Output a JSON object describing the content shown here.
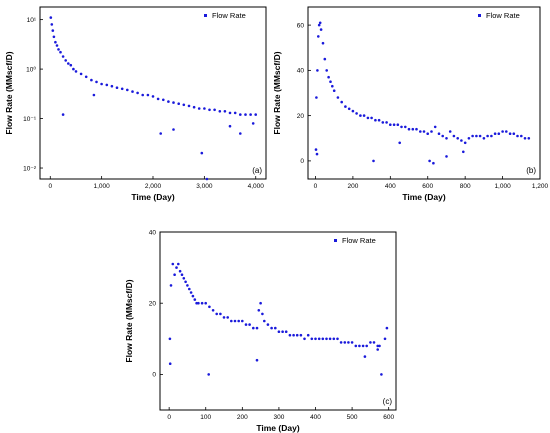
{
  "chart_data": [
    {
      "type": "scatter",
      "panel_label": "(a)",
      "xlabel": "Time (Day)",
      "ylabel": "Flow Rate (MMscf/D)",
      "yscale": "log",
      "xlim": [
        -200,
        4200
      ],
      "ylim": [
        0.006,
        18
      ],
      "xticks": [
        0,
        1000,
        2000,
        3000,
        4000
      ],
      "xtick_labels": [
        "0",
        "1,000",
        "2,000",
        "3,000",
        "4,000"
      ],
      "yticks": [
        0.01,
        0.1,
        1,
        10
      ],
      "ytick_labels": [
        "10⁻²",
        "10⁻¹",
        "10⁰",
        "10¹"
      ],
      "legend": [
        "Flow Rate"
      ],
      "legend_position": "top-right",
      "color": "#1a1adb",
      "series": [
        {
          "name": "Flow Rate",
          "x": [
            10,
            30,
            50,
            70,
            100,
            130,
            160,
            200,
            250,
            300,
            350,
            400,
            450,
            500,
            600,
            700,
            800,
            900,
            1000,
            1100,
            1200,
            1300,
            1400,
            1500,
            1600,
            1700,
            1800,
            1900,
            2000,
            2100,
            2200,
            2300,
            2400,
            2500,
            2600,
            2700,
            2800,
            2900,
            3000,
            3100,
            3200,
            3300,
            3400,
            3500,
            3600,
            3700,
            3800,
            3900,
            4000,
            250,
            850,
            2150,
            2400,
            2950,
            3050,
            3500,
            3700,
            3950
          ],
          "y": [
            11,
            8,
            6,
            4.5,
            3.5,
            3,
            2.5,
            2.2,
            1.8,
            1.5,
            1.3,
            1.2,
            1.0,
            0.9,
            0.8,
            0.7,
            0.6,
            0.55,
            0.5,
            0.48,
            0.45,
            0.42,
            0.4,
            0.38,
            0.35,
            0.33,
            0.3,
            0.3,
            0.28,
            0.25,
            0.24,
            0.22,
            0.21,
            0.2,
            0.19,
            0.18,
            0.17,
            0.16,
            0.16,
            0.15,
            0.15,
            0.14,
            0.14,
            0.13,
            0.13,
            0.12,
            0.12,
            0.12,
            0.12,
            0.12,
            0.3,
            0.05,
            0.06,
            0.02,
            0.006,
            0.07,
            0.05,
            0.08
          ]
        }
      ]
    },
    {
      "type": "scatter",
      "panel_label": "(b)",
      "xlabel": "Time (Day)",
      "ylabel": "Flow Rate (MMscf/D)",
      "xlim": [
        -40,
        1200
      ],
      "ylim": [
        -8,
        68
      ],
      "xticks": [
        0,
        200,
        400,
        600,
        800,
        1000,
        1200
      ],
      "xtick_labels": [
        "0",
        "200",
        "400",
        "600",
        "800",
        "1,000",
        "1,200"
      ],
      "yticks": [
        0,
        20,
        40,
        60
      ],
      "ytick_labels": [
        "0",
        "20",
        "40",
        "60"
      ],
      "legend": [
        "Flow Rate"
      ],
      "legend_position": "top-right",
      "color": "#1a1adb",
      "series": [
        {
          "name": "Flow Rate",
          "x": [
            5,
            10,
            15,
            20,
            25,
            30,
            40,
            50,
            60,
            70,
            80,
            90,
            100,
            120,
            140,
            160,
            180,
            200,
            220,
            240,
            260,
            280,
            300,
            320,
            340,
            360,
            380,
            400,
            420,
            440,
            460,
            480,
            500,
            520,
            540,
            560,
            580,
            600,
            620,
            640,
            660,
            680,
            700,
            720,
            740,
            760,
            780,
            800,
            820,
            840,
            860,
            880,
            900,
            920,
            940,
            960,
            980,
            1000,
            1020,
            1040,
            1060,
            1080,
            1100,
            1120,
            1140,
            3,
            8,
            310,
            450,
            610,
            630,
            700,
            790
          ],
          "y": [
            28,
            40,
            55,
            60,
            61,
            58,
            52,
            45,
            40,
            37,
            35,
            33,
            31,
            28,
            26,
            24,
            23,
            22,
            21,
            20,
            20,
            19,
            19,
            18,
            18,
            17,
            17,
            16,
            16,
            16,
            15,
            15,
            14,
            14,
            14,
            13,
            13,
            12,
            13,
            15,
            12,
            11,
            10,
            13,
            11,
            10,
            9,
            8,
            10,
            11,
            11,
            11,
            10,
            11,
            11,
            12,
            12,
            13,
            13,
            12,
            12,
            11,
            11,
            10,
            10,
            5,
            3,
            0,
            8,
            0,
            -1,
            2,
            4
          ]
        }
      ]
    },
    {
      "type": "scatter",
      "panel_label": "(c)",
      "xlabel": "Time (Day)",
      "ylabel": "Flow Rate (MMscf/D)",
      "xlim": [
        -25,
        620
      ],
      "ylim": [
        -10,
        40
      ],
      "xticks": [
        0,
        100,
        200,
        300,
        400,
        500,
        600
      ],
      "xtick_labels": [
        "0",
        "100",
        "200",
        "300",
        "400",
        "500",
        "600"
      ],
      "yticks": [
        0,
        20,
        40
      ],
      "ytick_labels": [
        "0",
        "20",
        "40"
      ],
      "legend": [
        "Flow Rate"
      ],
      "legend_position": "top-right",
      "color": "#1a1adb",
      "series": [
        {
          "name": "Flow Rate",
          "x": [
            2,
            5,
            10,
            15,
            20,
            25,
            30,
            35,
            40,
            45,
            50,
            55,
            60,
            65,
            70,
            75,
            80,
            90,
            100,
            110,
            120,
            130,
            140,
            150,
            160,
            170,
            180,
            190,
            200,
            210,
            220,
            230,
            240,
            245,
            250,
            255,
            260,
            270,
            280,
            290,
            300,
            310,
            320,
            330,
            340,
            350,
            360,
            370,
            380,
            390,
            400,
            410,
            420,
            430,
            440,
            450,
            460,
            470,
            480,
            490,
            500,
            510,
            520,
            530,
            540,
            550,
            560,
            570,
            575,
            580,
            590,
            595,
            3,
            108,
            240,
            535,
            570
          ],
          "y": [
            10,
            25,
            31,
            28,
            30,
            31,
            29,
            28,
            27,
            26,
            25,
            24,
            23,
            22,
            21,
            20,
            20,
            20,
            20,
            19,
            18,
            17,
            17,
            16,
            16,
            15,
            15,
            15,
            15,
            14,
            14,
            13,
            13,
            18,
            20,
            17,
            15,
            14,
            13,
            13,
            12,
            12,
            12,
            11,
            11,
            11,
            11,
            10,
            11,
            10,
            10,
            10,
            10,
            10,
            10,
            10,
            10,
            9,
            9,
            9,
            9,
            8,
            8,
            8,
            8,
            9,
            9,
            8,
            8,
            0,
            10,
            13,
            3,
            0,
            4,
            5,
            7
          ]
        }
      ]
    }
  ]
}
